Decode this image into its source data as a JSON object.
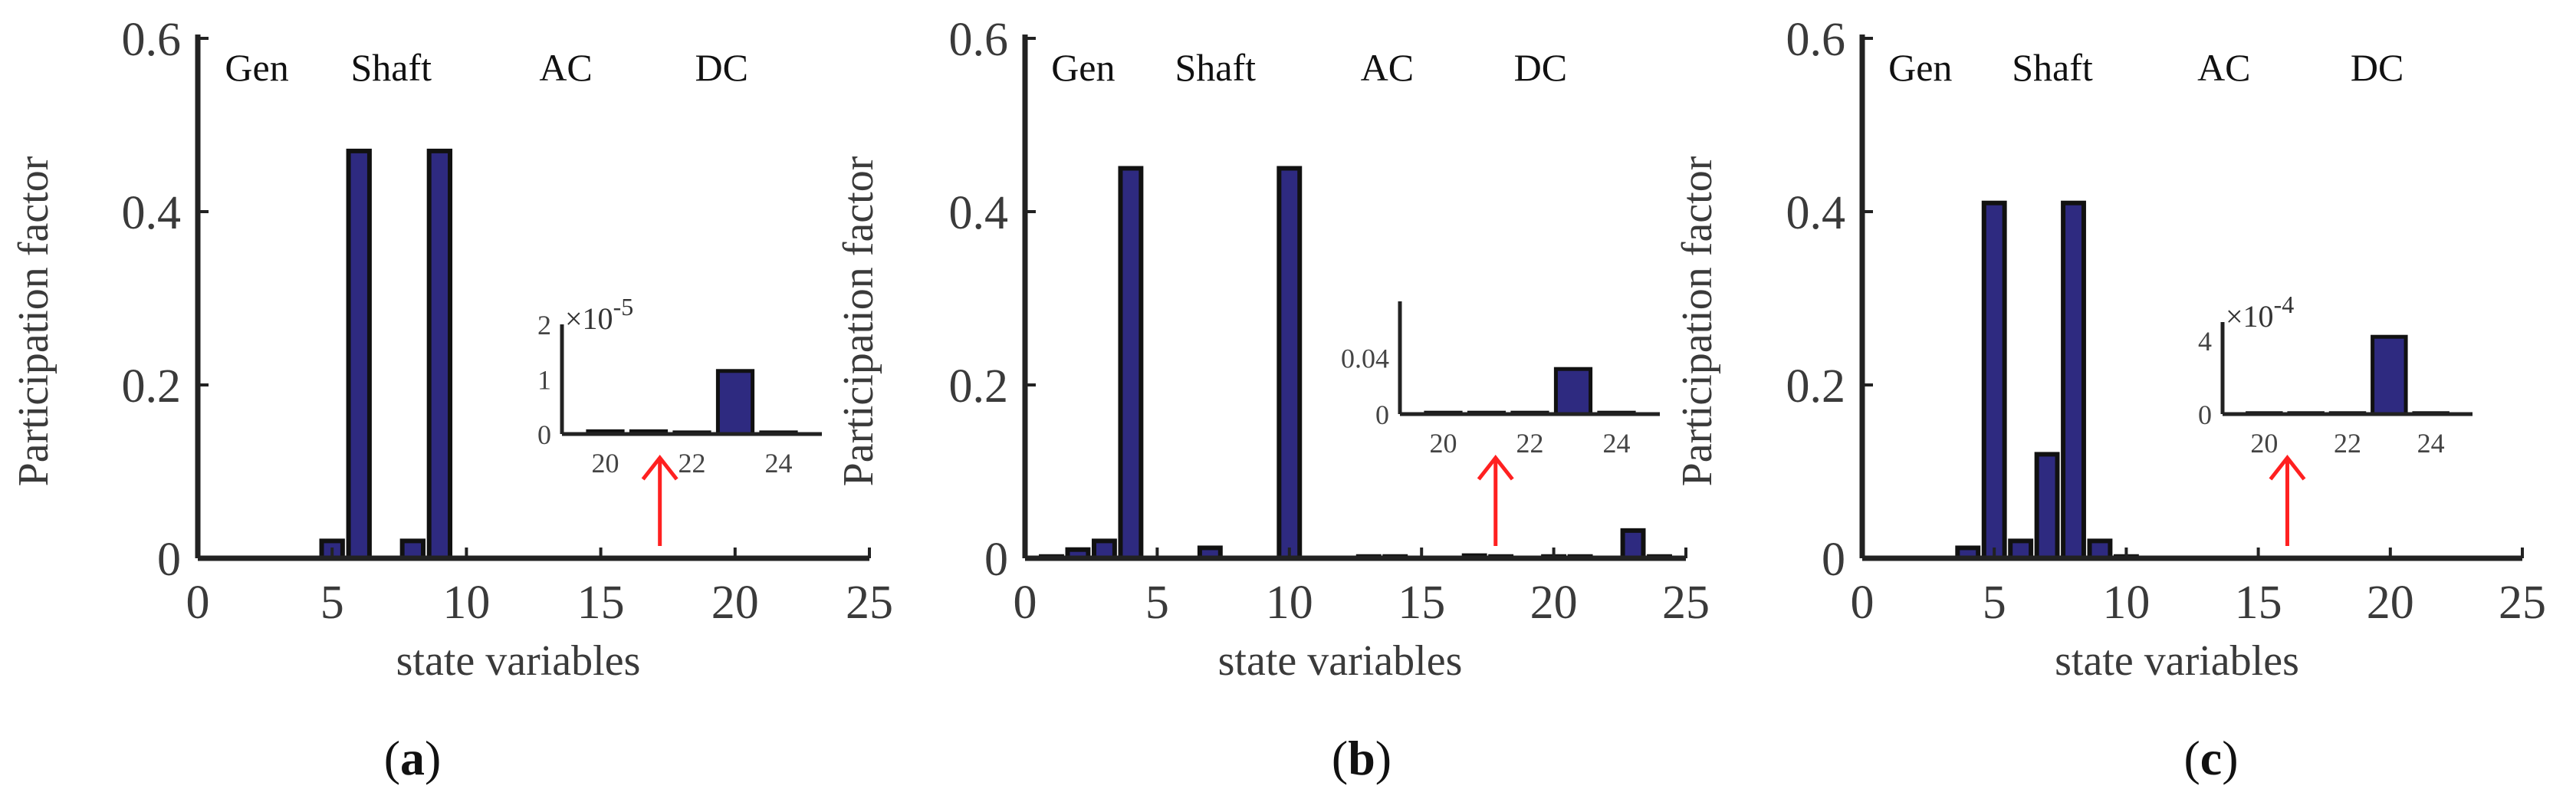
{
  "colors": {
    "bar": "#2e2a80",
    "arrow": "#ff2020",
    "axis": "#222222"
  },
  "chart_data": [
    {
      "type": "bar",
      "panel_label": "a",
      "xlabel": "state variables",
      "ylabel": "Participation factor",
      "xlim": [
        0,
        25
      ],
      "ylim": [
        0,
        0.6
      ],
      "x_ticks": [
        0,
        5,
        10,
        15,
        20,
        25
      ],
      "y_ticks": [
        "0",
        "0.2",
        "0.4",
        "0.6"
      ],
      "y_tick_values": [
        0,
        0.2,
        0.4,
        0.6
      ],
      "regions": [
        {
          "label": "Gen",
          "x": 2.2
        },
        {
          "label": "Shaft",
          "x": 7.2
        },
        {
          "label": "AC",
          "x": 13.7
        },
        {
          "label": "DC",
          "x": 19.5
        }
      ],
      "x": [
        5,
        6,
        8,
        9
      ],
      "values": [
        0.02,
        0.47,
        0.02,
        0.47
      ],
      "inset": {
        "xlim": [
          19,
          25
        ],
        "ylim": [
          0,
          2
        ],
        "x_ticks": [
          "20",
          "22",
          "24"
        ],
        "x_tick_values": [
          20,
          22,
          24
        ],
        "y_ticks": [
          "0",
          "1",
          "2"
        ],
        "y_tick_values": [
          0,
          1,
          2
        ],
        "multiplier": "×10",
        "exponent": "-5",
        "x": [
          20,
          21,
          22,
          23,
          24
        ],
        "values": [
          0.05,
          0.05,
          0.03,
          1.15,
          0.03
        ]
      },
      "arrow_x": 17.2
    },
    {
      "type": "bar",
      "panel_label": "b",
      "xlabel": "state variables",
      "ylabel": "Participation factor",
      "xlim": [
        0,
        25
      ],
      "ylim": [
        0,
        0.6
      ],
      "x_ticks": [
        0,
        5,
        10,
        15,
        20,
        25
      ],
      "y_ticks": [
        "0",
        "0.2",
        "0.4",
        "0.6"
      ],
      "y_tick_values": [
        0,
        0.2,
        0.4,
        0.6
      ],
      "regions": [
        {
          "label": "Gen",
          "x": 2.2
        },
        {
          "label": "Shaft",
          "x": 7.2
        },
        {
          "label": "AC",
          "x": 13.7
        },
        {
          "label": "DC",
          "x": 19.5
        }
      ],
      "x": [
        1,
        2,
        3,
        4,
        7,
        10,
        13,
        14,
        17,
        18,
        20,
        21,
        23,
        24
      ],
      "values": [
        0.002,
        0.01,
        0.02,
        0.45,
        0.012,
        0.45,
        0.002,
        0.002,
        0.003,
        0.002,
        0.002,
        0.002,
        0.032,
        0.002
      ],
      "inset": {
        "xlim": [
          19,
          25
        ],
        "ylim": [
          0,
          0.08
        ],
        "x_ticks": [
          "20",
          "22",
          "24"
        ],
        "x_tick_values": [
          20,
          22,
          24
        ],
        "y_ticks": [
          "0",
          "0.04"
        ],
        "y_tick_values": [
          0,
          0.04
        ],
        "multiplier": "",
        "exponent": "",
        "x": [
          20,
          21,
          22,
          23,
          24
        ],
        "values": [
          0.001,
          0.001,
          0.001,
          0.032,
          0.001
        ]
      },
      "arrow_x": 17.8
    },
    {
      "type": "bar",
      "panel_label": "c",
      "xlabel": "state variables",
      "ylabel": "Participation factor",
      "xlim": [
        0,
        25
      ],
      "ylim": [
        0,
        0.6
      ],
      "x_ticks": [
        0,
        5,
        10,
        15,
        20,
        25
      ],
      "y_ticks": [
        "0",
        "0.2",
        "0.4",
        "0.6"
      ],
      "y_tick_values": [
        0,
        0.2,
        0.4,
        0.6
      ],
      "regions": [
        {
          "label": "Gen",
          "x": 2.2
        },
        {
          "label": "Shaft",
          "x": 7.2
        },
        {
          "label": "AC",
          "x": 13.7
        },
        {
          "label": "DC",
          "x": 19.5
        }
      ],
      "x": [
        4,
        5,
        6,
        7,
        8,
        9,
        10
      ],
      "values": [
        0.012,
        0.41,
        0.02,
        0.12,
        0.41,
        0.02,
        0.002
      ],
      "inset": {
        "xlim": [
          19,
          25
        ],
        "ylim": [
          0,
          5
        ],
        "x_ticks": [
          "20",
          "22",
          "24"
        ],
        "x_tick_values": [
          20,
          22,
          24
        ],
        "y_ticks": [
          "0",
          "4"
        ],
        "y_tick_values": [
          0,
          4
        ],
        "multiplier": "×10",
        "exponent": "-4",
        "x": [
          20,
          21,
          22,
          23,
          24
        ],
        "values": [
          0.05,
          0.05,
          0.05,
          4.2,
          0.05
        ]
      },
      "arrow_x": 16.1
    }
  ]
}
